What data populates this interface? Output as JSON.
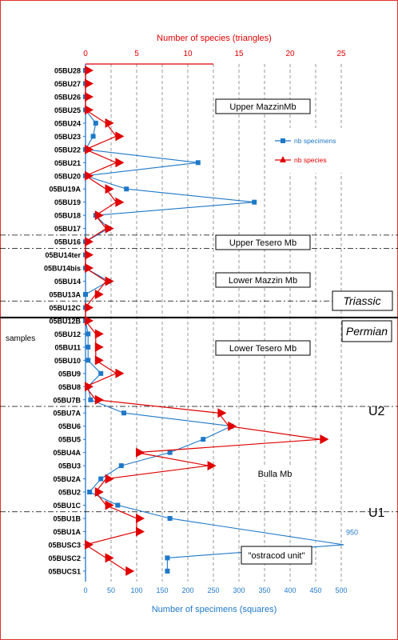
{
  "chart_data": {
    "type": "line",
    "title": "",
    "top_axis": {
      "label": "Number of species (triangles)",
      "range": [
        0,
        25
      ],
      "ticks": [
        "0",
        "5",
        "10",
        "15",
        "20",
        "25"
      ],
      "color": "#e00000"
    },
    "bottom_axis": {
      "label": "Number of specimens (squares)",
      "range": [
        0,
        500
      ],
      "ticks": [
        "0",
        "50",
        "100",
        "150",
        "200",
        "250",
        "300",
        "350",
        "400",
        "450",
        "500"
      ],
      "color": "#1f78c8"
    },
    "ylabel": "samples",
    "categories": [
      "05BU28",
      "05BU27",
      "05BU26",
      "05BU25",
      "05BU24",
      "05BU23",
      "05BU22",
      "05BU21",
      "05BU20",
      "05BU19A",
      "05BU19",
      "05BU18",
      "05BU17",
      "05BU16",
      "05BU14ter",
      "05BU14bis",
      "05BU14",
      "05BU13A",
      "05BU12C",
      "05BU12B",
      "05BU12",
      "05BU11",
      "05BU10",
      "05BU9",
      "05BU8",
      "05BU7B",
      "05BU7A",
      "05BU6",
      "05BU5",
      "05BU4A",
      "05BU3",
      "05BU2A",
      "05BU2",
      "05BU1C",
      "05BU1B",
      "05BU1A",
      "05BUSC3",
      "05BUSC2",
      "05BUCS1"
    ],
    "series": [
      {
        "name": "nb specimens",
        "marker": "square",
        "color": "#1f78c8",
        "axis": "bottom",
        "values": [
          0,
          0,
          0,
          0,
          20,
          15,
          0,
          220,
          0,
          80,
          330,
          20,
          45,
          0,
          0,
          0,
          45,
          0,
          0,
          0,
          5,
          5,
          5,
          30,
          5,
          10,
          75,
          285,
          230,
          165,
          70,
          30,
          8,
          63,
          165,
          null,
          950,
          160,
          160
        ]
      },
      {
        "name": "nb species",
        "marker": "triangle",
        "color": "#e00000",
        "axis": "top",
        "values": [
          0,
          0,
          0,
          0,
          2,
          3,
          0,
          3,
          0,
          2,
          3,
          1,
          2,
          0,
          0,
          0,
          2,
          1,
          0,
          0,
          1,
          1,
          1,
          3,
          0,
          1,
          13,
          14,
          23,
          5,
          12,
          2,
          1,
          2,
          5,
          5,
          0,
          2,
          4
        ]
      }
    ],
    "offscale_label": "950",
    "boundaries": [
      "U2",
      "U1"
    ],
    "system_labels": [
      "Triassic",
      "Permian"
    ],
    "units": [
      "Upper MazzinMb",
      "Upper Tesero Mb",
      "Lower Mazzin Mb",
      "Lower Tesero Mb",
      "Bulla Mb",
      "\"ostracod unit\""
    ],
    "grid": true,
    "legend": "top-right"
  }
}
